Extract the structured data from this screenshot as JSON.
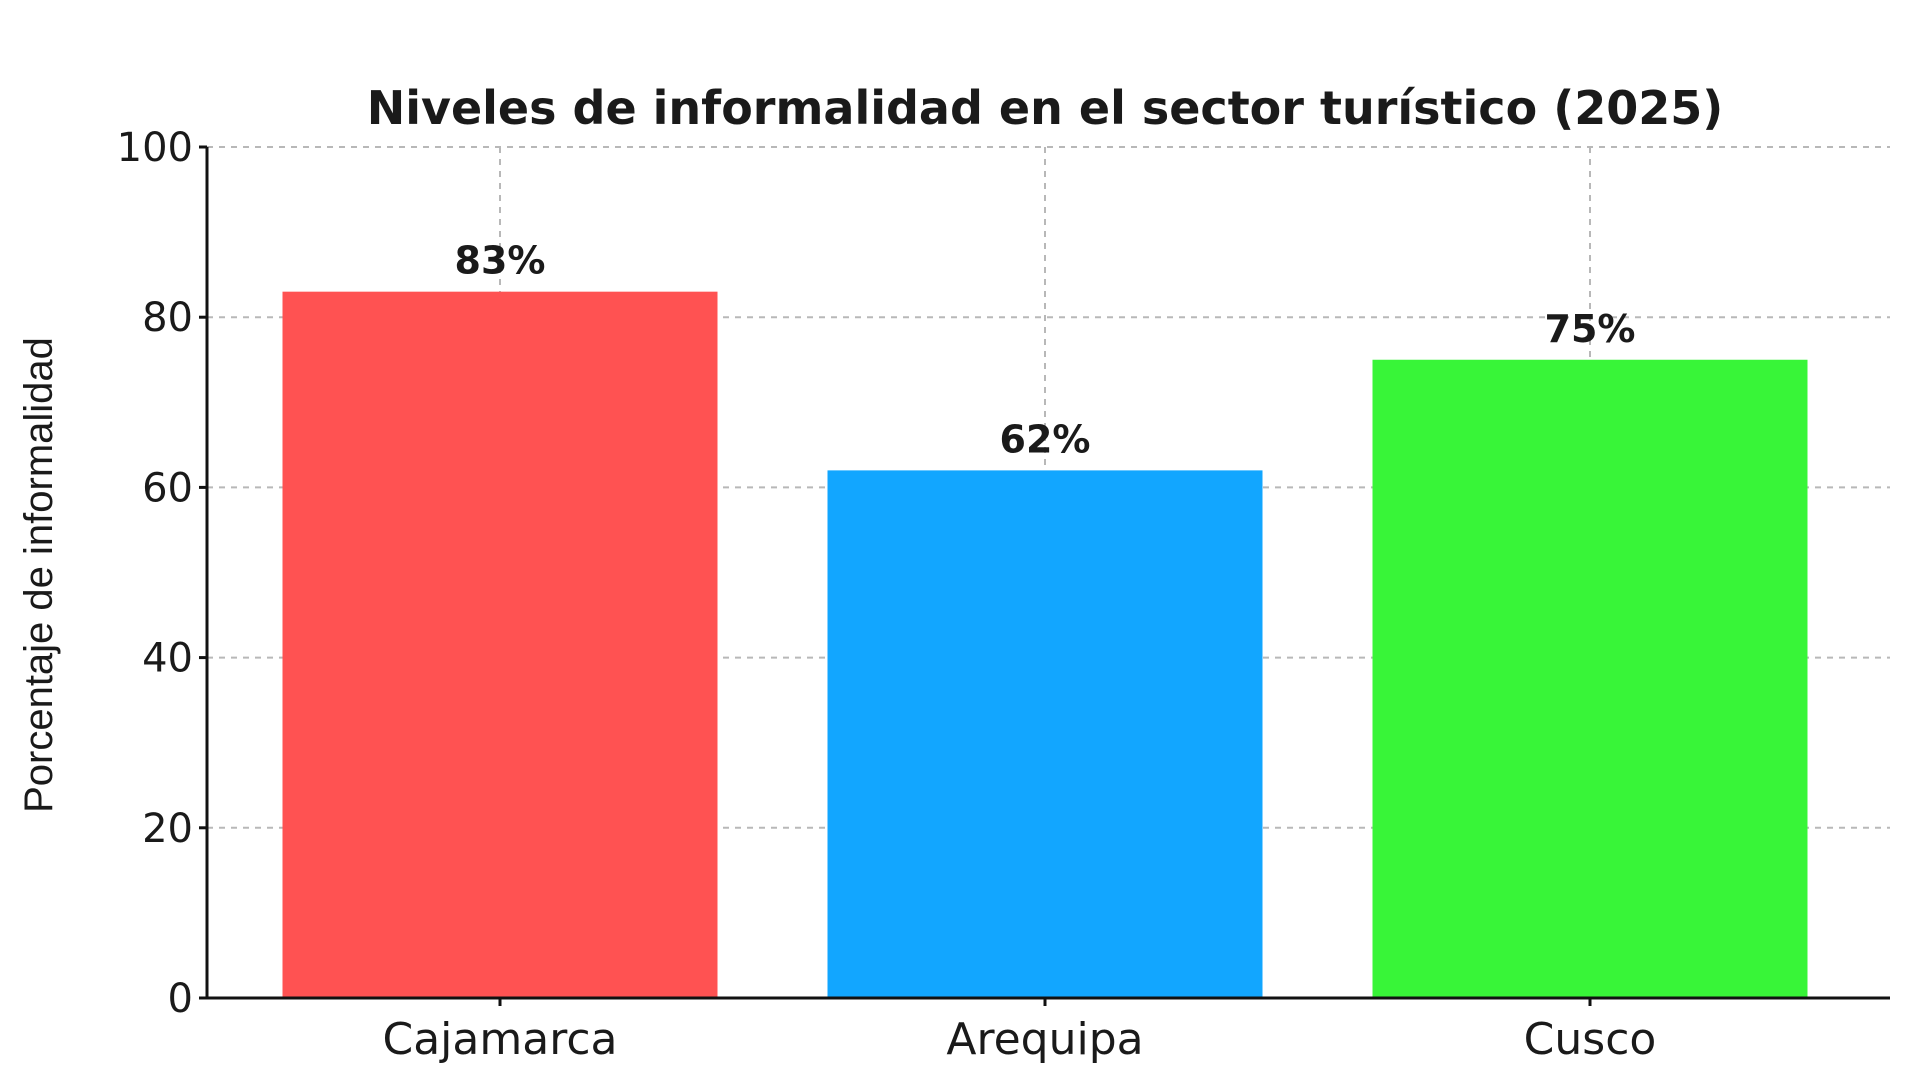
{
  "chart_data": {
    "type": "bar",
    "title": "Niveles de informalidad en el sector turístico (2025)",
    "xlabel": "",
    "ylabel": "Porcentaje de informalidad",
    "categories": [
      "Cajamarca",
      "Arequipa",
      "Cusco"
    ],
    "values": [
      83,
      62,
      75
    ],
    "data_labels": [
      "83%",
      "62%",
      "75%"
    ],
    "colors": [
      "#ff5252",
      "#12a6ff",
      "#38f538"
    ],
    "ylim": [
      0,
      100
    ],
    "yticks": [
      0,
      20,
      40,
      60,
      80,
      100
    ],
    "ytick_labels": [
      "0",
      "20",
      "40",
      "60",
      "80",
      "100"
    ],
    "grid": true,
    "legend": "none"
  }
}
